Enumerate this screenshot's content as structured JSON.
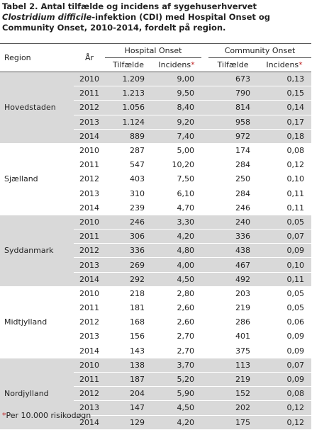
{
  "title": {
    "line1": "Tabel 2. Antal tilfælde og incidens af sygehuserhvervet",
    "italic": "Clostridium difficile",
    "line2_rest": "-infektion (CDI) med Hospital Onset og",
    "line3": "Community Onset, 2010-2014, fordelt på region."
  },
  "headers": {
    "region": "Region",
    "year": "År",
    "hospital_onset": "Hospital Onset",
    "community_onset": "Community Onset",
    "cases": "Tilfælde",
    "incidence": "Incidens",
    "asterisk": "*"
  },
  "regions": [
    {
      "name": "Hovedstaden",
      "rows": [
        {
          "year": "2010",
          "ho_cases": "1.209",
          "ho_inc": "9,00",
          "co_cases": "673",
          "co_inc": "0,13"
        },
        {
          "year": "2011",
          "ho_cases": "1.213",
          "ho_inc": "9,50",
          "co_cases": "790",
          "co_inc": "0,15"
        },
        {
          "year": "2012",
          "ho_cases": "1.056",
          "ho_inc": "8,40",
          "co_cases": "814",
          "co_inc": "0,14"
        },
        {
          "year": "2013",
          "ho_cases": "1.124",
          "ho_inc": "9,20",
          "co_cases": "958",
          "co_inc": "0,17"
        },
        {
          "year": "2014",
          "ho_cases": "889",
          "ho_inc": "7,40",
          "co_cases": "972",
          "co_inc": "0,18"
        }
      ]
    },
    {
      "name": "Sjælland",
      "rows": [
        {
          "year": "2010",
          "ho_cases": "287",
          "ho_inc": "5,00",
          "co_cases": "174",
          "co_inc": "0,08"
        },
        {
          "year": "2011",
          "ho_cases": "547",
          "ho_inc": "10,20",
          "co_cases": "284",
          "co_inc": "0,12"
        },
        {
          "year": "2012",
          "ho_cases": "403",
          "ho_inc": "7,50",
          "co_cases": "250",
          "co_inc": "0,10"
        },
        {
          "year": "2013",
          "ho_cases": "310",
          "ho_inc": "6,10",
          "co_cases": "284",
          "co_inc": "0,11"
        },
        {
          "year": "2014",
          "ho_cases": "239",
          "ho_inc": "4,70",
          "co_cases": "246",
          "co_inc": "0,11"
        }
      ]
    },
    {
      "name": "Syddanmark",
      "rows": [
        {
          "year": "2010",
          "ho_cases": "246",
          "ho_inc": "3,30",
          "co_cases": "240",
          "co_inc": "0,05"
        },
        {
          "year": "2011",
          "ho_cases": "306",
          "ho_inc": "4,20",
          "co_cases": "336",
          "co_inc": "0,07"
        },
        {
          "year": "2012",
          "ho_cases": "336",
          "ho_inc": "4,80",
          "co_cases": "438",
          "co_inc": "0,09"
        },
        {
          "year": "2013",
          "ho_cases": "269",
          "ho_inc": "4,00",
          "co_cases": "467",
          "co_inc": "0,10"
        },
        {
          "year": "2014",
          "ho_cases": "292",
          "ho_inc": "4,50",
          "co_cases": "492",
          "co_inc": "0,11"
        }
      ]
    },
    {
      "name": "Midtjylland",
      "rows": [
        {
          "year": "2010",
          "ho_cases": "218",
          "ho_inc": "2,80",
          "co_cases": "203",
          "co_inc": "0,05"
        },
        {
          "year": "2011",
          "ho_cases": "181",
          "ho_inc": "2,60",
          "co_cases": "219",
          "co_inc": "0,05"
        },
        {
          "year": "2012",
          "ho_cases": "168",
          "ho_inc": "2,60",
          "co_cases": "286",
          "co_inc": "0,06"
        },
        {
          "year": "2013",
          "ho_cases": "156",
          "ho_inc": "2,70",
          "co_cases": "401",
          "co_inc": "0,09"
        },
        {
          "year": "2014",
          "ho_cases": "143",
          "ho_inc": "2,70",
          "co_cases": "375",
          "co_inc": "0,09"
        }
      ]
    },
    {
      "name": "Nordjylland",
      "rows": [
        {
          "year": "2010",
          "ho_cases": "138",
          "ho_inc": "3,70",
          "co_cases": "113",
          "co_inc": "0,07"
        },
        {
          "year": "2011",
          "ho_cases": "187",
          "ho_inc": "5,20",
          "co_cases": "219",
          "co_inc": "0,09"
        },
        {
          "year": "2012",
          "ho_cases": "204",
          "ho_inc": "5,90",
          "co_cases": "152",
          "co_inc": "0,08"
        },
        {
          "year": "2013",
          "ho_cases": "147",
          "ho_inc": "4,50",
          "co_cases": "202",
          "co_inc": "0,12"
        },
        {
          "year": "2014",
          "ho_cases": "129",
          "ho_inc": "4,20",
          "co_cases": "175",
          "co_inc": "0,12"
        }
      ]
    }
  ],
  "footnote": {
    "asterisk": "*",
    "text": "Per 10.000 risikodøgn"
  },
  "colors": {
    "shade": "#d9d9d9",
    "asterisk": "#c0282a"
  }
}
